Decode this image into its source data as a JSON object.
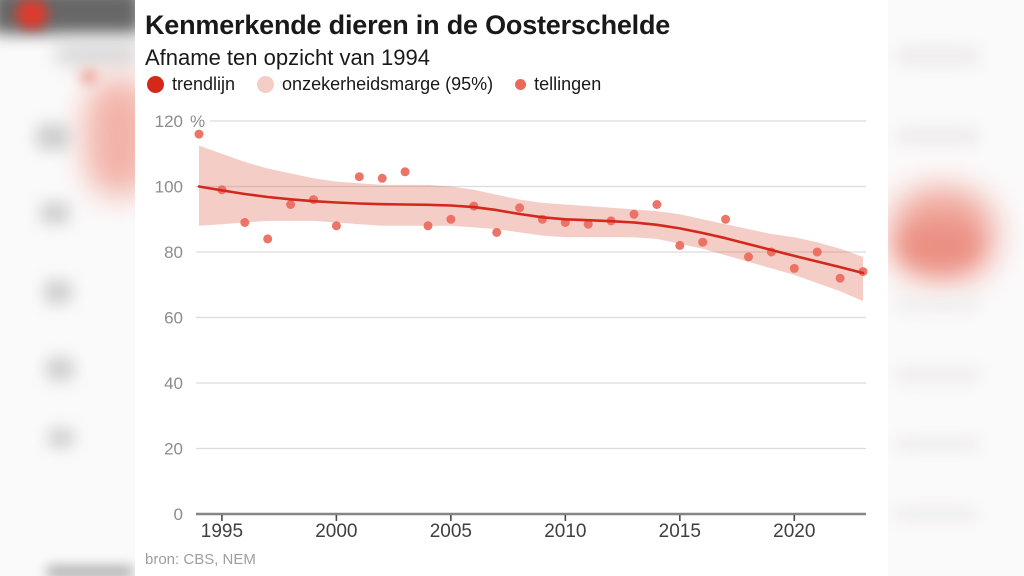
{
  "source": "bron: CBS, NEM",
  "legend": [
    {
      "label": "trendlijn",
      "color": "#d5281b"
    },
    {
      "label": "onzekerheidsmarge (95%)",
      "color": "#f5cdc7"
    },
    {
      "label": "tellingen",
      "color": "#e96a5b"
    }
  ],
  "colors": {
    "trend": "#d2291c",
    "band_base": "#e2705f",
    "band_legend": "#f5cdc7",
    "dots": "#e96a5b",
    "grid": "#dcdcdc",
    "axis_line": "#858585",
    "tick": "#4a4a4a",
    "y_label": "#8c8c8c",
    "x_label": "#3f3f3f"
  },
  "chart_data": {
    "type": "line",
    "title": "Kenmerkende dieren in de Oosterschelde",
    "subtitle": "Afname ten opzicht van 1994",
    "unit": "%",
    "xlabel": "",
    "ylabel": "%",
    "xlim": [
      1994,
      2023
    ],
    "ylim": [
      0,
      120
    ],
    "grid": true,
    "legend_position": "top",
    "xticks": [
      1995,
      2000,
      2005,
      2010,
      2015,
      2020
    ],
    "yticks": [
      0,
      20,
      40,
      60,
      80,
      100,
      120
    ],
    "x": [
      1994,
      1995,
      1996,
      1997,
      1998,
      1999,
      2000,
      2001,
      2002,
      2003,
      2004,
      2005,
      2006,
      2007,
      2008,
      2009,
      2010,
      2011,
      2012,
      2013,
      2014,
      2015,
      2016,
      2017,
      2018,
      2019,
      2020,
      2021,
      2022,
      2023
    ],
    "series": [
      {
        "name": "trendlijn",
        "type": "line",
        "color": "#d2291c",
        "values": [
          100,
          98.8,
          97.7,
          96.8,
          96.1,
          95.5,
          95.1,
          94.8,
          94.6,
          94.5,
          94.4,
          94.2,
          93.7,
          92.8,
          91.6,
          90.6,
          90,
          89.7,
          89.4,
          89,
          88.3,
          87.2,
          85.8,
          84.2,
          82.4,
          80.6,
          78.8,
          77.1,
          75.4,
          73.6
        ]
      },
      {
        "name": "onzekerheidsmarge (95%)",
        "type": "band",
        "color": "#e2705f",
        "opacity": 0.35,
        "upper": [
          112.5,
          110,
          107.5,
          105.5,
          104,
          102.5,
          101.5,
          101,
          100.5,
          100.5,
          100.5,
          100,
          99,
          97.5,
          96,
          95,
          94.5,
          94,
          93.5,
          93,
          92.5,
          91.5,
          90,
          88.5,
          87,
          85.5,
          84.5,
          83,
          81,
          78.5
        ],
        "lower": [
          88,
          88.5,
          89,
          89.5,
          89.5,
          89.5,
          89,
          88.5,
          88,
          88,
          88,
          88,
          87.5,
          87,
          86,
          85,
          84.5,
          84.5,
          84.5,
          84.5,
          84,
          82.5,
          81,
          79,
          77,
          75,
          73,
          70.5,
          68,
          65
        ]
      },
      {
        "name": "tellingen",
        "type": "scatter",
        "color": "#e96a5b",
        "values": [
          116,
          99,
          89,
          84,
          94.5,
          96,
          88,
          103,
          102.5,
          104.5,
          88,
          90,
          94,
          86,
          93.5,
          90,
          89,
          88.5,
          89.5,
          91.5,
          94.5,
          82,
          83,
          90,
          78.5,
          80,
          75,
          80,
          72,
          74
        ]
      }
    ]
  }
}
